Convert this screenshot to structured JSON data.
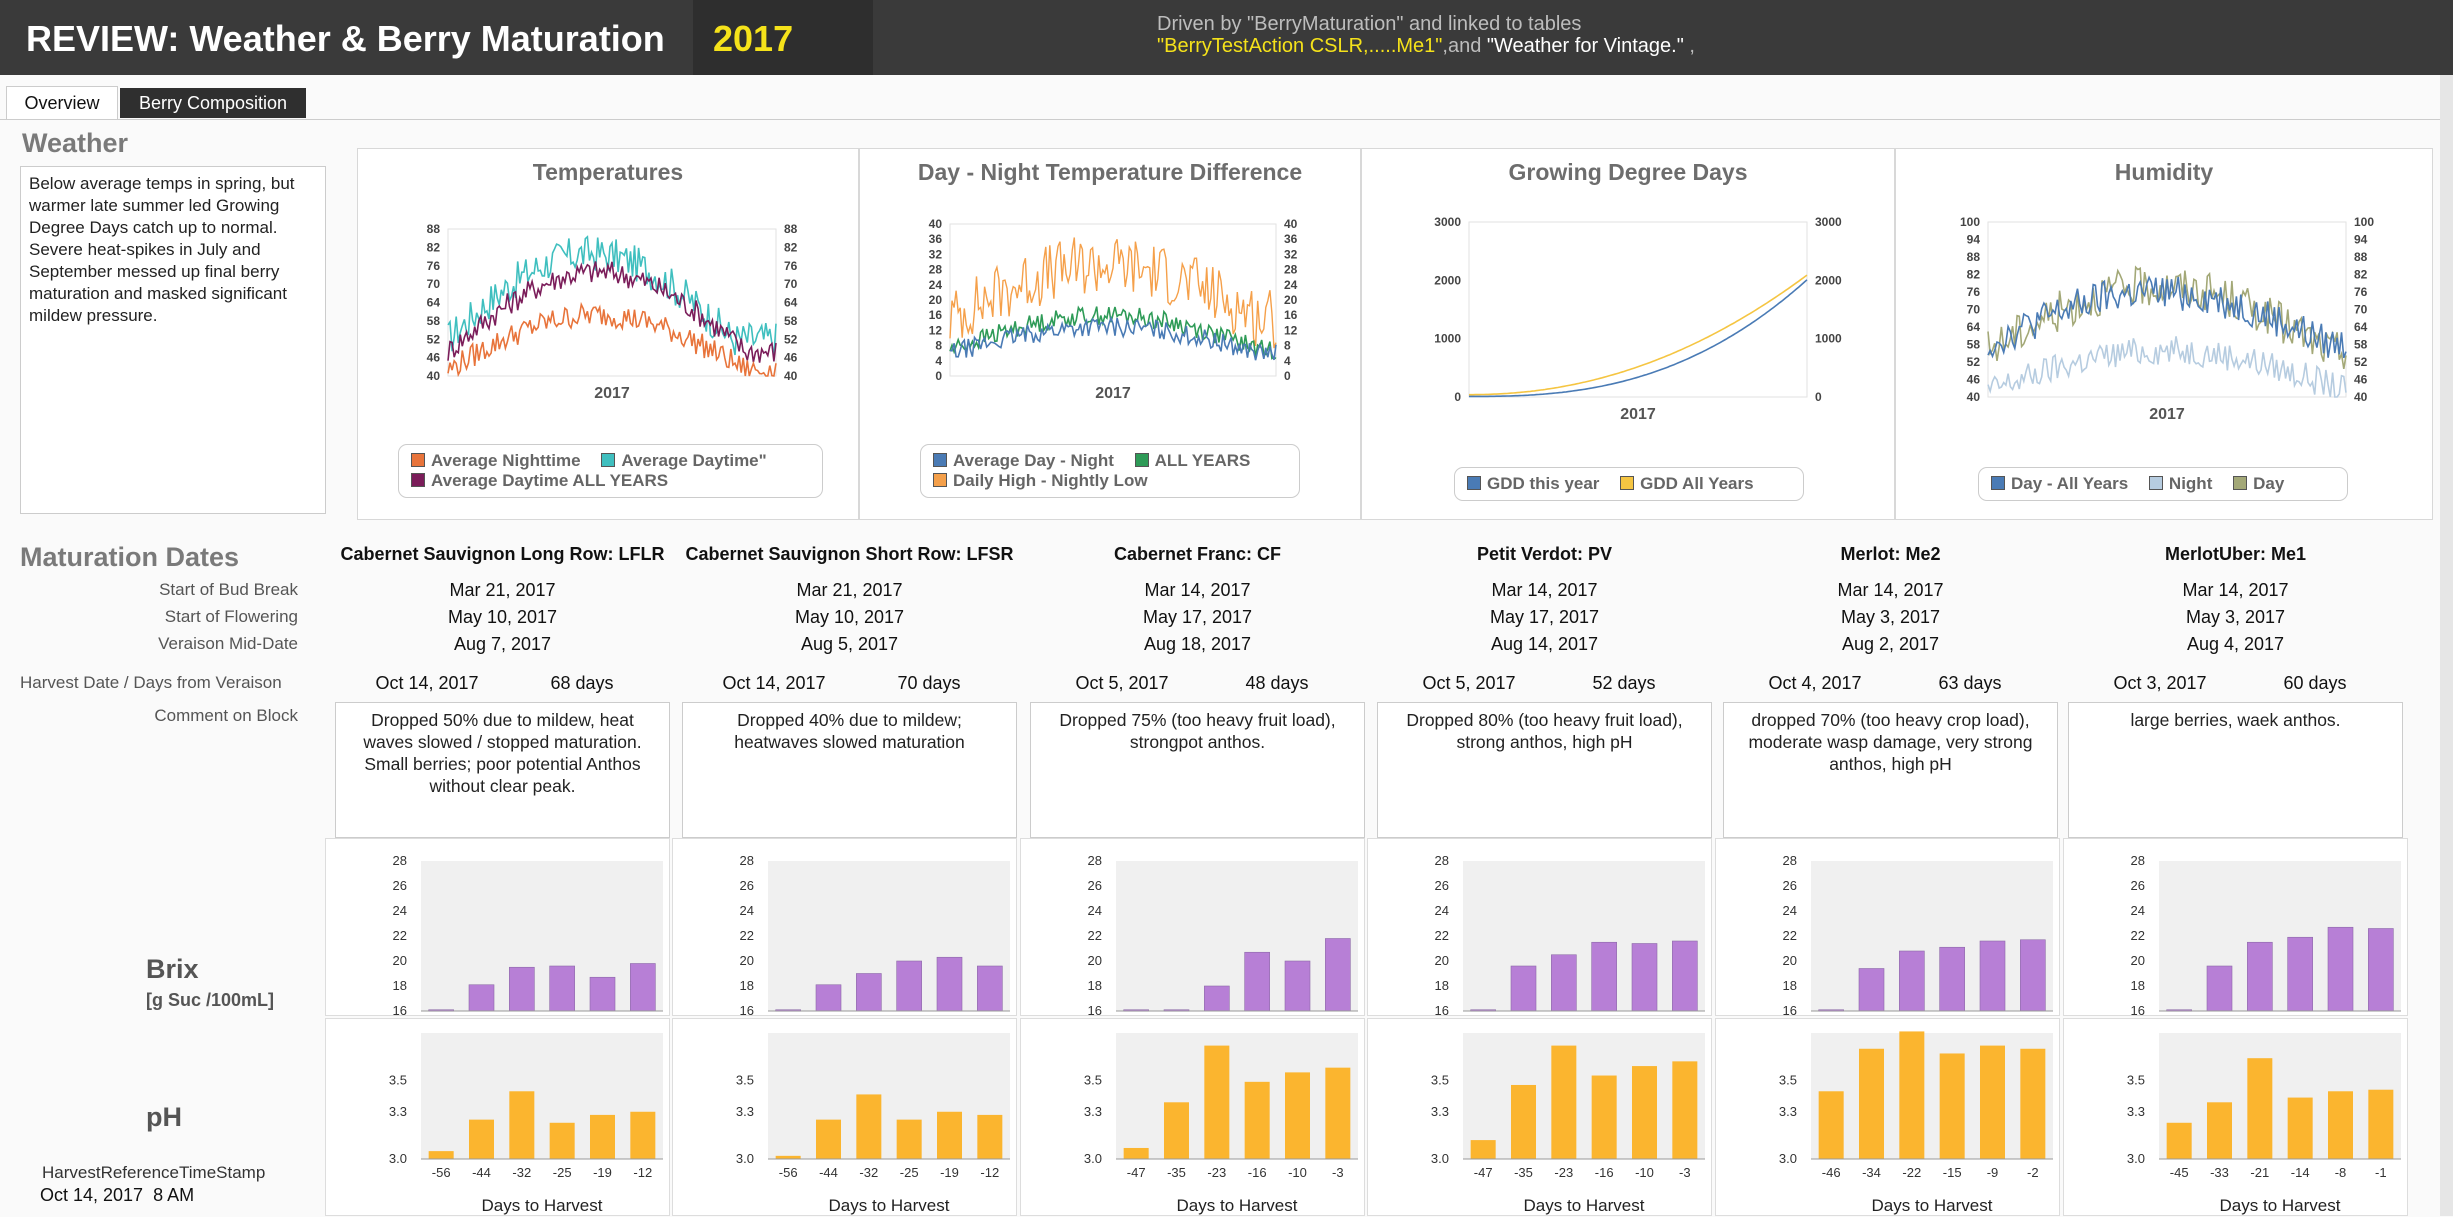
{
  "header": {
    "title": "REVIEW: Weather & Berry Maturation",
    "year": "2017",
    "driven_line": "Driven by \"BerryMaturation\" and linked to tables",
    "tables_yellow_1": "\"BerryTestAction CSLR,.....Me1\"",
    "tables_and": ",and ",
    "tables_yellow_2": "\"Weather for Vintage.\"",
    "tables_end": " ,"
  },
  "tabs": [
    {
      "label": "Overview",
      "active": true
    },
    {
      "label": "Berry Composition",
      "active": false
    }
  ],
  "weather": {
    "heading": "Weather",
    "summary": "Below average temps in spring, but warmer late summer led Growing Degree Days catch up to normal. Severe heat-spikes in July and September messed up final berry maturation and masked significant mildew pressure."
  },
  "weather_charts": [
    {
      "title": "Temperatures",
      "xlabel": "2017",
      "yticks": [
        40,
        46,
        52,
        58,
        64,
        70,
        76,
        82,
        88
      ],
      "legend": [
        {
          "name": "Average Nighttime",
          "color": "#e8743b"
        },
        {
          "name": "Average Daytime\"",
          "color": "#3fbfbf"
        },
        {
          "name": "Average Daytime ALL YEARS",
          "color": "#7b1d5a"
        }
      ]
    },
    {
      "title": "Day - Night Temperature Difference",
      "xlabel": "2017",
      "yticks": [
        0,
        4,
        8,
        12,
        16,
        20,
        24,
        28,
        32,
        36,
        40
      ],
      "legend": [
        {
          "name": "Average Day - Night",
          "color": "#4a7bb5"
        },
        {
          "name": "ALL YEARS",
          "color": "#2e9b57"
        },
        {
          "name": "Daily High - Nightly Low",
          "color": "#f5a04a"
        }
      ]
    },
    {
      "title": "Growing Degree Days",
      "xlabel": "2017",
      "yticks": [
        0,
        1000,
        2000,
        3000
      ],
      "legend": [
        {
          "name": "GDD this year",
          "color": "#4a7bb5"
        },
        {
          "name": "GDD All Years",
          "color": "#f5c542"
        }
      ]
    },
    {
      "title": "Humidity",
      "xlabel": "2017",
      "yticks": [
        40,
        46,
        52,
        58,
        64,
        70,
        76,
        82,
        88,
        94,
        100
      ],
      "legend": [
        {
          "name": "Day - All Years",
          "color": "#4a7bb5"
        },
        {
          "name": "Night",
          "color": "#b6cce0"
        },
        {
          "name": "Day",
          "color": "#a3a877"
        }
      ]
    }
  ],
  "maturation": {
    "heading": "Maturation Dates",
    "row_labels": {
      "bud_break": "Start of Bud Break",
      "flowering": "Start of Flowering",
      "veraison": "Veraison Mid-Date",
      "harvest": "Harvest Date / Days from Veraison",
      "comment": "Comment on Block"
    },
    "blocks": [
      {
        "name": "Cabernet Sauvignon Long Row: LFLR",
        "bud_break": "Mar 21, 2017",
        "flowering": "May 10, 2017",
        "veraison": "Aug 7, 2017",
        "harvest": "Oct 14, 2017",
        "days": "68 days",
        "comment": "Dropped 50% due to mildew, heat waves slowed / stopped maturation. Small berries; poor potential Anthos without clear peak."
      },
      {
        "name": "Cabernet Sauvignon Short Row: LFSR",
        "bud_break": "Mar 21, 2017",
        "flowering": "May 10, 2017",
        "veraison": "Aug 5, 2017",
        "harvest": "Oct 14, 2017",
        "days": "70 days",
        "comment": "Dropped 40% due to mildew; heatwaves slowed maturation"
      },
      {
        "name": "Cabernet Franc: CF",
        "bud_break": "Mar 14, 2017",
        "flowering": "May 17, 2017",
        "veraison": "Aug 18, 2017",
        "harvest": "Oct 5, 2017",
        "days": "48 days",
        "comment": "Dropped 75% (too heavy fruit load), strongpot  anthos."
      },
      {
        "name": "Petit Verdot: PV",
        "bud_break": "Mar 14, 2017",
        "flowering": "May 17, 2017",
        "veraison": "Aug 14, 2017",
        "harvest": "Oct 5, 2017",
        "days": "52 days",
        "comment": "Dropped 80% (too heavy fruit load), strong anthos, high pH"
      },
      {
        "name": "Merlot: Me2",
        "bud_break": "Mar 14, 2017",
        "flowering": "May 3, 2017",
        "veraison": "Aug 2, 2017",
        "harvest": "Oct 4, 2017",
        "days": "63 days",
        "comment": "dropped 70% (too heavy crop load), moderate wasp damage, very strong anthos, high pH"
      },
      {
        "name": "MerlotUber: Me1",
        "bud_break": "Mar 14, 2017",
        "flowering": "May 3, 2017",
        "veraison": "Aug 4, 2017",
        "harvest": "Oct 3, 2017",
        "days": "60 days",
        "comment": "large berries, waek anthos."
      }
    ]
  },
  "brix": {
    "label": "Brix",
    "unit": "[g Suc /100mL]",
    "yticks": [
      16,
      18,
      20,
      22,
      24,
      26,
      28
    ],
    "color": "#b77fd6"
  },
  "ph": {
    "label": "pH",
    "yticks": [
      "3.0",
      "3.3",
      "3.5"
    ],
    "xlabel": "Days to Harvest",
    "color": "#fbb52f"
  },
  "timestamp": {
    "label": "HarvestReferenceTimeStamp",
    "value": "Oct 14, 2017  8 AM"
  },
  "chart_data": [
    {
      "type": "bar",
      "name": "Brix LFLR",
      "x": [
        -56,
        -44,
        -32,
        -25,
        -19,
        -12
      ],
      "values": [
        16.1,
        18.1,
        19.5,
        19.6,
        18.7,
        19.8
      ],
      "ylim": [
        16,
        28
      ]
    },
    {
      "type": "bar",
      "name": "Brix LFSR",
      "x": [
        -56,
        -44,
        -32,
        -25,
        -19,
        -12
      ],
      "values": [
        16.1,
        18.1,
        19.0,
        20.0,
        20.3,
        19.6
      ],
      "ylim": [
        16,
        28
      ]
    },
    {
      "type": "bar",
      "name": "Brix CF",
      "x": [
        -47,
        -35,
        -23,
        -16,
        -10,
        -3
      ],
      "values": [
        16.1,
        16.1,
        18.0,
        20.7,
        20.0,
        21.8
      ],
      "ylim": [
        16,
        28
      ]
    },
    {
      "type": "bar",
      "name": "Brix PV",
      "x": [
        -47,
        -35,
        -23,
        -16,
        -10,
        -3
      ],
      "values": [
        16.1,
        19.6,
        20.5,
        21.5,
        21.4,
        21.6
      ],
      "ylim": [
        16,
        28
      ]
    },
    {
      "type": "bar",
      "name": "Brix Me2",
      "x": [
        -46,
        -34,
        -22,
        -15,
        -9,
        -2
      ],
      "values": [
        16.1,
        19.4,
        20.8,
        21.1,
        21.6,
        21.7
      ],
      "ylim": [
        16,
        28
      ]
    },
    {
      "type": "bar",
      "name": "Brix Me1",
      "x": [
        -45,
        -33,
        -21,
        -14,
        -8,
        -1
      ],
      "values": [
        16.1,
        19.6,
        21.5,
        21.9,
        22.7,
        22.6
      ],
      "ylim": [
        16,
        28
      ]
    },
    {
      "type": "bar",
      "name": "pH LFLR",
      "x": [
        -56,
        -44,
        -32,
        -25,
        -19,
        -12
      ],
      "values": [
        3.05,
        3.25,
        3.43,
        3.23,
        3.28,
        3.3
      ],
      "ylim": [
        3.0,
        3.8
      ]
    },
    {
      "type": "bar",
      "name": "pH LFSR",
      "x": [
        -56,
        -44,
        -32,
        -25,
        -19,
        -12
      ],
      "values": [
        3.02,
        3.25,
        3.41,
        3.25,
        3.3,
        3.28
      ],
      "ylim": [
        3.0,
        3.8
      ]
    },
    {
      "type": "bar",
      "name": "pH CF",
      "x": [
        -47,
        -35,
        -23,
        -16,
        -10,
        -3
      ],
      "values": [
        3.07,
        3.36,
        3.72,
        3.49,
        3.55,
        3.58
      ],
      "ylim": [
        3.0,
        3.8
      ]
    },
    {
      "type": "bar",
      "name": "pH PV",
      "x": [
        -47,
        -35,
        -23,
        -16,
        -10,
        -3
      ],
      "values": [
        3.12,
        3.47,
        3.72,
        3.53,
        3.59,
        3.62
      ],
      "ylim": [
        3.0,
        3.8
      ]
    },
    {
      "type": "bar",
      "name": "pH Me2",
      "x": [
        -46,
        -34,
        -22,
        -15,
        -9,
        -2
      ],
      "values": [
        3.43,
        3.7,
        3.81,
        3.67,
        3.72,
        3.7
      ],
      "ylim": [
        3.0,
        3.8
      ]
    },
    {
      "type": "bar",
      "name": "pH Me1",
      "x": [
        -45,
        -33,
        -21,
        -14,
        -8,
        -1
      ],
      "values": [
        3.23,
        3.36,
        3.64,
        3.39,
        3.43,
        3.44
      ],
      "ylim": [
        3.0,
        3.8
      ]
    }
  ]
}
